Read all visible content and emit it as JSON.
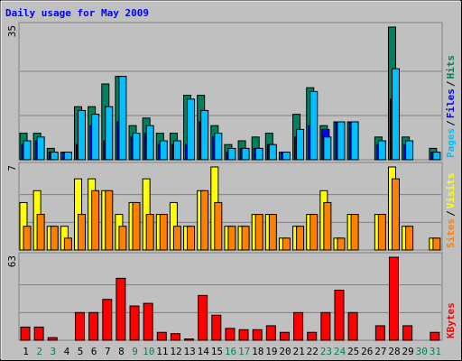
{
  "chart_data": [
    {
      "type": "bar",
      "title": "Daily usage for May 2009",
      "legend_separator": "/",
      "ylim": [
        0,
        35
      ],
      "yticks": [
        35
      ],
      "series": [
        {
          "name": "Pages",
          "color": "#00c0ff",
          "values": [
            5,
            6,
            2,
            2,
            13,
            12,
            14,
            22,
            7,
            9,
            5,
            5,
            16,
            13,
            7,
            3,
            3,
            3,
            4,
            2,
            8,
            18,
            6,
            10,
            10,
            0,
            5,
            24,
            5,
            0,
            2
          ]
        },
        {
          "name": "Files",
          "color": "#0000ff",
          "values": [
            4,
            5,
            2,
            2,
            4,
            9,
            5,
            10,
            6,
            7,
            4,
            4,
            4,
            10,
            6,
            2,
            3,
            3,
            4,
            2,
            6,
            9,
            8,
            10,
            10,
            0,
            4,
            16,
            4,
            0,
            2
          ]
        },
        {
          "name": "Hits",
          "color": "#00805c",
          "values": [
            7,
            7,
            3,
            2,
            14,
            14,
            20,
            22,
            9,
            11,
            7,
            7,
            17,
            17,
            9,
            4,
            5,
            6,
            7,
            2,
            12,
            19,
            9,
            10,
            10,
            0,
            6,
            35,
            6,
            0,
            3
          ]
        }
      ]
    },
    {
      "type": "bar",
      "ylim": [
        0,
        7
      ],
      "yticks": [
        7
      ],
      "series": [
        {
          "name": "Sites",
          "color": "#ff8000",
          "values": [
            2,
            3,
            2,
            1,
            3,
            5,
            5,
            2,
            4,
            3,
            3,
            2,
            2,
            5,
            4,
            2,
            2,
            3,
            3,
            1,
            2,
            3,
            4,
            1,
            3,
            0,
            3,
            6,
            2,
            0,
            1
          ]
        },
        {
          "name": "Visits",
          "color": "#ffff00",
          "values": [
            4,
            5,
            2,
            2,
            6,
            6,
            5,
            3,
            4,
            6,
            3,
            4,
            2,
            5,
            7,
            2,
            2,
            3,
            3,
            1,
            2,
            3,
            5,
            1,
            3,
            0,
            3,
            7,
            2,
            0,
            1
          ]
        }
      ]
    },
    {
      "type": "bar",
      "ylim": [
        0,
        63
      ],
      "yticks": [
        63
      ],
      "categories": [
        "1",
        "2",
        "3",
        "4",
        "5",
        "6",
        "7",
        "8",
        "9",
        "10",
        "11",
        "12",
        "13",
        "14",
        "15",
        "16",
        "17",
        "18",
        "19",
        "20",
        "21",
        "22",
        "23",
        "24",
        "25",
        "26",
        "27",
        "28",
        "29",
        "30",
        "31"
      ],
      "category_colors": [
        "#000000",
        "#00805c",
        "#00805c",
        "#000000",
        "#000000",
        "#000000",
        "#000000",
        "#000000",
        "#00805c",
        "#00805c",
        "#000000",
        "#000000",
        "#000000",
        "#000000",
        "#000000",
        "#00805c",
        "#00805c",
        "#000000",
        "#000000",
        "#000000",
        "#000000",
        "#000000",
        "#00805c",
        "#00805c",
        "#000000",
        "#000000",
        "#000000",
        "#000000",
        "#000000",
        "#00805c",
        "#00805c"
      ],
      "series": [
        {
          "name": "KBytes",
          "color": "#ff0000",
          "values": [
            10,
            10,
            2,
            0,
            21,
            21,
            31,
            47,
            26,
            28,
            6,
            5,
            1,
            34,
            19,
            9,
            8,
            8,
            11,
            6,
            21,
            6,
            21,
            38,
            21,
            0,
            11,
            63,
            11,
            0,
            6
          ]
        }
      ]
    }
  ]
}
